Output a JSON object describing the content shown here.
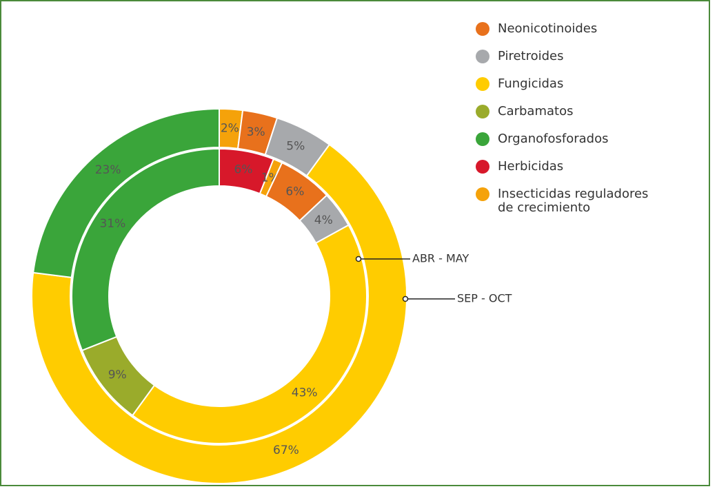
{
  "chart_data": {
    "type": "donut",
    "categories": [
      "Neonicotinoides",
      "Piretroides",
      "Fungicidas",
      "Carbamatos",
      "Organofosforados",
      "Herbicidas",
      "Insecticidas reguladores de crecimiento"
    ],
    "colors": [
      "#e8711c",
      "#a7a9ac",
      "#ffcc00",
      "#9aab2b",
      "#3aa53a",
      "#d7182a",
      "#f5a20a"
    ],
    "series": [
      {
        "name": "SEP - OCT",
        "values": [
          3,
          5,
          67,
          null,
          23,
          null,
          2
        ],
        "value_labels": [
          "3%",
          "5%",
          "67%",
          null,
          "23%",
          null,
          "2%"
        ]
      },
      {
        "name": "ABR - MAY",
        "values": [
          6,
          4,
          43,
          9,
          31,
          6,
          1
        ],
        "value_labels": [
          "6%",
          "4%",
          "43%",
          "9%",
          "31%",
          "6%",
          "1%"
        ]
      }
    ]
  }
}
